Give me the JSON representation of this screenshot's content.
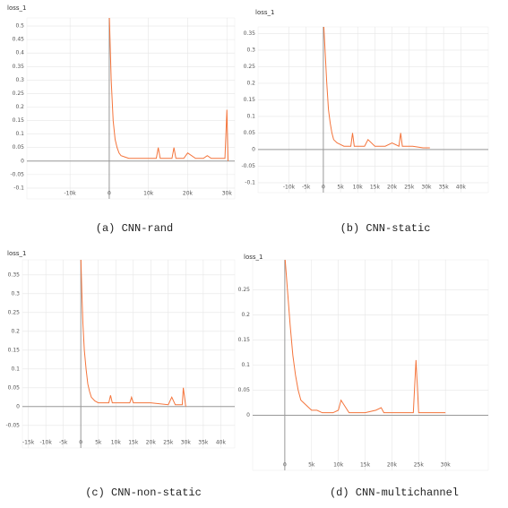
{
  "chart_data": [
    {
      "type": "line",
      "title": "loss_1",
      "caption": "(a) CNN-rand",
      "xlim": [
        -21000,
        32000
      ],
      "ylim": [
        -0.14,
        0.53
      ],
      "grid": true,
      "xticks": [
        {
          "value": -10000,
          "label": "-10k"
        },
        0,
        {
          "value": 10000,
          "label": "10k"
        },
        {
          "value": 20000,
          "label": "20k"
        },
        {
          "value": 30000,
          "label": "30k"
        }
      ],
      "yticks": [
        0.5,
        0.45,
        0.4,
        0.35,
        0.3,
        0.25,
        0.2,
        0.15,
        0.1,
        0.05,
        0,
        -0.05,
        -0.1
      ],
      "x": [
        0,
        500,
        1000,
        1500,
        2000,
        2500,
        3000,
        4000,
        5000,
        6000,
        8000,
        10000,
        12000,
        12500,
        13000,
        15000,
        16000,
        16500,
        17000,
        19000,
        20000,
        22000,
        24000,
        25000,
        26000,
        28000,
        29500,
        30000,
        30300
      ],
      "series": [
        {
          "color": "#f4743b",
          "values": [
            0.55,
            0.3,
            0.15,
            0.08,
            0.05,
            0.03,
            0.02,
            0.015,
            0.01,
            0.01,
            0.01,
            0.01,
            0.01,
            0.05,
            0.01,
            0.01,
            0.01,
            0.05,
            0.01,
            0.01,
            0.03,
            0.01,
            0.01,
            0.02,
            0.01,
            0.01,
            0.01,
            0.19,
            0.0
          ]
        }
      ]
    },
    {
      "type": "line",
      "title": "loss_1",
      "caption": "(b) CNN-static",
      "xlim": [
        -19000,
        48000
      ],
      "ylim": [
        -0.13,
        0.37
      ],
      "grid": true,
      "xticks": [
        {
          "value": -10000,
          "label": "-10k"
        },
        {
          "value": -5000,
          "label": "-5k"
        },
        0,
        {
          "value": 5000,
          "label": "5k"
        },
        {
          "value": 10000,
          "label": "10k"
        },
        {
          "value": 15000,
          "label": "15k"
        },
        {
          "value": 20000,
          "label": "20k"
        },
        {
          "value": 25000,
          "label": "25k"
        },
        {
          "value": 30000,
          "label": "30k"
        },
        {
          "value": 35000,
          "label": "35k"
        },
        {
          "value": 40000,
          "label": "40k"
        }
      ],
      "yticks": [
        0.35,
        0.3,
        0.25,
        0.2,
        0.15,
        0.1,
        0.05,
        0,
        -0.05,
        -0.1
      ],
      "x": [
        0,
        500,
        1000,
        1500,
        2000,
        2500,
        3000,
        4000,
        5000,
        6000,
        8000,
        8500,
        9000,
        12000,
        13000,
        15000,
        18000,
        20000,
        22000,
        22500,
        23000,
        26000,
        29000,
        31000
      ],
      "series": [
        {
          "color": "#f4743b",
          "values": [
            0.4,
            0.3,
            0.2,
            0.12,
            0.08,
            0.05,
            0.03,
            0.02,
            0.015,
            0.01,
            0.01,
            0.05,
            0.01,
            0.01,
            0.03,
            0.01,
            0.01,
            0.02,
            0.01,
            0.05,
            0.01,
            0.01,
            0.005,
            0.005
          ]
        }
      ]
    },
    {
      "type": "line",
      "title": "loss_1",
      "caption": "(c) CNN-non-static",
      "xlim": [
        -16700,
        44000
      ],
      "ylim": [
        -0.11,
        0.39
      ],
      "grid": true,
      "xticks": [
        {
          "value": -15000,
          "label": "-15k"
        },
        {
          "value": -10000,
          "label": "-10k"
        },
        {
          "value": -5000,
          "label": "-5k"
        },
        0,
        {
          "value": 5000,
          "label": "5k"
        },
        {
          "value": 10000,
          "label": "10k"
        },
        {
          "value": 15000,
          "label": "15k"
        },
        {
          "value": 20000,
          "label": "20k"
        },
        {
          "value": 25000,
          "label": "25k"
        },
        {
          "value": 30000,
          "label": "30k"
        },
        {
          "value": 35000,
          "label": "35k"
        },
        {
          "value": 40000,
          "label": "40k"
        }
      ],
      "yticks": [
        0.35,
        0.3,
        0.25,
        0.2,
        0.15,
        0.1,
        0.05,
        0,
        -0.05
      ],
      "x": [
        0,
        300,
        600,
        1000,
        1500,
        2000,
        2500,
        3000,
        4000,
        5000,
        6000,
        8000,
        8500,
        9000,
        12000,
        14000,
        14500,
        15000,
        18000,
        20000,
        25000,
        26000,
        27000,
        29000,
        29300,
        30000
      ],
      "series": [
        {
          "color": "#f4743b",
          "values": [
            0.4,
            0.3,
            0.22,
            0.15,
            0.1,
            0.06,
            0.04,
            0.025,
            0.015,
            0.01,
            0.01,
            0.01,
            0.03,
            0.01,
            0.01,
            0.01,
            0.025,
            0.01,
            0.01,
            0.01,
            0.005,
            0.025,
            0.005,
            0.005,
            0.05,
            0.0
          ]
        }
      ]
    },
    {
      "type": "line",
      "title": "loss_1",
      "caption": "(d) CNN-multichannel",
      "xlim": [
        -6000,
        38000
      ],
      "ylim": [
        -0.11,
        0.31
      ],
      "grid": true,
      "xticks": [
        0,
        {
          "value": 5000,
          "label": "5k"
        },
        {
          "value": 10000,
          "label": "10k"
        },
        {
          "value": 15000,
          "label": "15k"
        },
        {
          "value": 20000,
          "label": "20k"
        },
        {
          "value": 25000,
          "label": "25k"
        },
        {
          "value": 30000,
          "label": "30k"
        }
      ],
      "yticks": [
        0.25,
        0.2,
        0.15,
        0.1,
        0.05,
        0
      ],
      "x": [
        0,
        500,
        1000,
        1500,
        2000,
        2500,
        3000,
        4000,
        5000,
        6000,
        7000,
        9000,
        10000,
        10500,
        12000,
        15000,
        17000,
        18000,
        18500,
        20000,
        22000,
        24000,
        24500,
        25000,
        28000,
        30000
      ],
      "series": [
        {
          "color": "#f4743b",
          "values": [
            0.32,
            0.25,
            0.18,
            0.12,
            0.08,
            0.05,
            0.03,
            0.02,
            0.01,
            0.01,
            0.005,
            0.005,
            0.01,
            0.03,
            0.005,
            0.005,
            0.01,
            0.015,
            0.005,
            0.005,
            0.005,
            0.005,
            0.11,
            0.005,
            0.005,
            0.005
          ]
        }
      ]
    }
  ]
}
